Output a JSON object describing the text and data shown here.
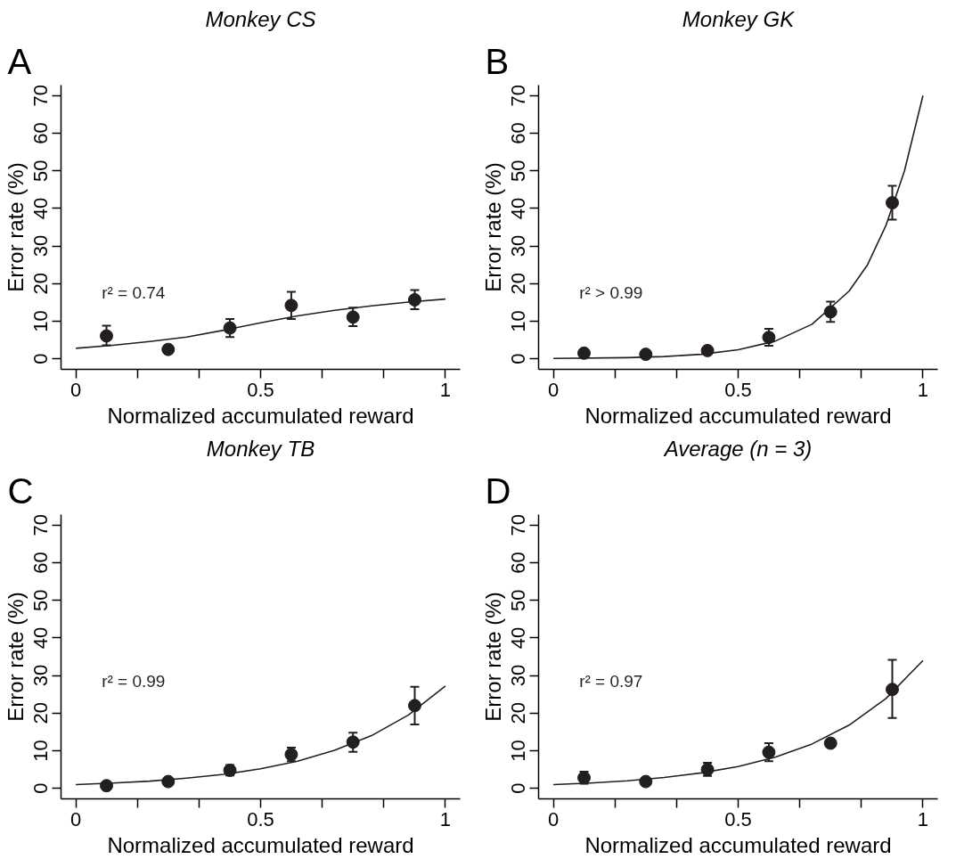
{
  "chart_data": [
    {
      "type": "scatter",
      "title": "Monkey CS",
      "xlabel": "Normalized accumulated reward",
      "ylabel": "Error rate (%)",
      "annotations": [
        "A",
        "r² = 0.74"
      ],
      "xlim": [
        -0.04,
        1.04
      ],
      "ylim": [
        -2.8,
        72.8
      ],
      "xticks": [
        0,
        {
          "value": 0.167,
          "label": null
        },
        {
          "value": 0.333,
          "label": null
        },
        0.5,
        {
          "value": 0.667,
          "label": null
        },
        {
          "value": 0.833,
          "label": null
        },
        1
      ],
      "yticks": [
        0,
        10,
        20,
        30,
        40,
        50,
        60,
        70
      ],
      "grid": false,
      "marker": "circle",
      "series": [
        {
          "color": "#231f20",
          "x": [
            0.083,
            0.25,
            0.417,
            0.583,
            0.75,
            0.917
          ],
          "values": [
            6.1,
            2.5,
            8.2,
            14.2,
            11.1,
            15.7
          ],
          "errors": [
            [
              3.6,
              8.8
            ],
            null,
            [
              5.8,
              10.6
            ],
            [
              10.6,
              17.8
            ],
            [
              8.7,
              13.6
            ],
            [
              13.2,
              18.3
            ]
          ]
        },
        {
          "type": "line",
          "color": "#231f20",
          "marker": "none",
          "line_style": "solid",
          "x": [
            0,
            0.1,
            0.2,
            0.3,
            0.4,
            0.5,
            0.6,
            0.7,
            0.8,
            0.9,
            1
          ],
          "values": [
            2.8,
            3.6,
            4.6,
            5.8,
            7.6,
            9.6,
            11.4,
            12.9,
            14.1,
            15.1,
            15.9
          ]
        }
      ]
    },
    {
      "type": "scatter",
      "title": "Monkey GK",
      "xlabel": "Normalized accumulated reward",
      "ylabel": "Error rate (%)",
      "annotations": [
        "B",
        "r² > 0.99"
      ],
      "xlim": [
        -0.04,
        1.04
      ],
      "ylim": [
        -2.8,
        72.8
      ],
      "xticks": [
        0,
        {
          "value": 0.167,
          "label": null
        },
        {
          "value": 0.333,
          "label": null
        },
        0.5,
        {
          "value": 0.667,
          "label": null
        },
        {
          "value": 0.833,
          "label": null
        },
        1
      ],
      "yticks": [
        0,
        10,
        20,
        30,
        40,
        50,
        60,
        70
      ],
      "grid": false,
      "marker": "circle",
      "series": [
        {
          "color": "#231f20",
          "x": [
            0.083,
            0.25,
            0.417,
            0.583,
            0.75,
            0.917
          ],
          "values": [
            1.5,
            1.2,
            2.2,
            5.7,
            12.5,
            41.5
          ],
          "errors": [
            null,
            null,
            null,
            [
              3.5,
              8
            ],
            [
              9.8,
              15.2
            ],
            [
              37,
              46
            ]
          ]
        },
        {
          "type": "line",
          "color": "#231f20",
          "marker": "none",
          "line_style": "solid",
          "x": [
            0,
            0.2,
            0.3,
            0.4,
            0.5,
            0.6,
            0.7,
            0.8,
            0.85,
            0.9,
            0.95,
            1
          ],
          "values": [
            0.1,
            0.3,
            0.6,
            1.2,
            2.4,
            4.7,
            9.2,
            18,
            25,
            35.5,
            50,
            70
          ]
        }
      ]
    },
    {
      "type": "scatter",
      "title": "Monkey TB",
      "xlabel": "Normalized accumulated reward",
      "ylabel": "Error rate (%)",
      "annotations": [
        "C",
        "r² = 0.99"
      ],
      "xlim": [
        -0.04,
        1.04
      ],
      "ylim": [
        -2.8,
        72.8
      ],
      "xticks": [
        0,
        {
          "value": 0.167,
          "label": null
        },
        {
          "value": 0.333,
          "label": null
        },
        0.5,
        {
          "value": 0.667,
          "label": null
        },
        {
          "value": 0.833,
          "label": null
        },
        1
      ],
      "yticks": [
        0,
        10,
        20,
        30,
        40,
        50,
        60,
        70
      ],
      "grid": false,
      "marker": "circle",
      "series": [
        {
          "color": "#231f20",
          "x": [
            0.083,
            0.25,
            0.417,
            0.583,
            0.75,
            0.917
          ],
          "values": [
            0.7,
            1.8,
            4.8,
            9,
            12.3,
            22
          ],
          "errors": [
            null,
            null,
            [
              3.4,
              6.2
            ],
            [
              7.2,
              10.8
            ],
            [
              9.7,
              14.8
            ],
            [
              17,
              27
            ]
          ]
        },
        {
          "type": "line",
          "color": "#231f20",
          "marker": "none",
          "line_style": "solid",
          "x": [
            0,
            0.1,
            0.2,
            0.3,
            0.4,
            0.5,
            0.6,
            0.7,
            0.8,
            0.9,
            1
          ],
          "values": [
            1,
            1.4,
            1.9,
            2.7,
            3.7,
            5.2,
            7.2,
            10.1,
            14,
            19.5,
            27.2
          ]
        }
      ]
    },
    {
      "type": "scatter",
      "title": "Average (n = 3)",
      "xlabel": "Normalized accumulated reward",
      "ylabel": "Error rate (%)",
      "annotations": [
        "D",
        "r² = 0.97"
      ],
      "xlim": [
        -0.04,
        1.04
      ],
      "ylim": [
        -2.8,
        72.8
      ],
      "xticks": [
        0,
        {
          "value": 0.167,
          "label": null
        },
        {
          "value": 0.333,
          "label": null
        },
        0.5,
        {
          "value": 0.667,
          "label": null
        },
        {
          "value": 0.833,
          "label": null
        },
        1
      ],
      "yticks": [
        0,
        10,
        20,
        30,
        40,
        50,
        60,
        70
      ],
      "grid": false,
      "marker": "circle",
      "series": [
        {
          "color": "#231f20",
          "x": [
            0.083,
            0.25,
            0.417,
            0.583,
            0.75,
            0.917
          ],
          "values": [
            2.8,
            1.8,
            5,
            9.6,
            12,
            26.3
          ],
          "errors": [
            [
              1.2,
              4.4
            ],
            null,
            [
              3.3,
              6.8
            ],
            [
              7.2,
              12
            ],
            null,
            [
              18.7,
              34.2
            ]
          ]
        },
        {
          "type": "line",
          "color": "#231f20",
          "marker": "none",
          "line_style": "solid",
          "x": [
            0,
            0.1,
            0.2,
            0.3,
            0.4,
            0.5,
            0.6,
            0.7,
            0.8,
            0.9,
            1
          ],
          "values": [
            1,
            1.4,
            2,
            2.9,
            4.1,
            5.8,
            8.3,
            11.8,
            16.8,
            23.9,
            34
          ]
        }
      ]
    }
  ]
}
